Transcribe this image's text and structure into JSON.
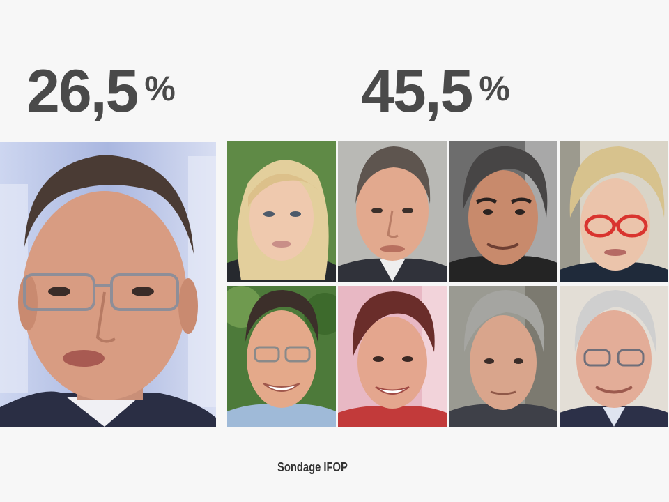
{
  "left_figure": {
    "value": "26,5",
    "unit": "%"
  },
  "right_figure": {
    "value": "45,5",
    "unit": "%"
  },
  "caption": "Sondage IFOP",
  "colors": {
    "percent_text": "#4a4a4a",
    "background": "#f7f7f7",
    "studio_blue": "#c9d3ef"
  }
}
